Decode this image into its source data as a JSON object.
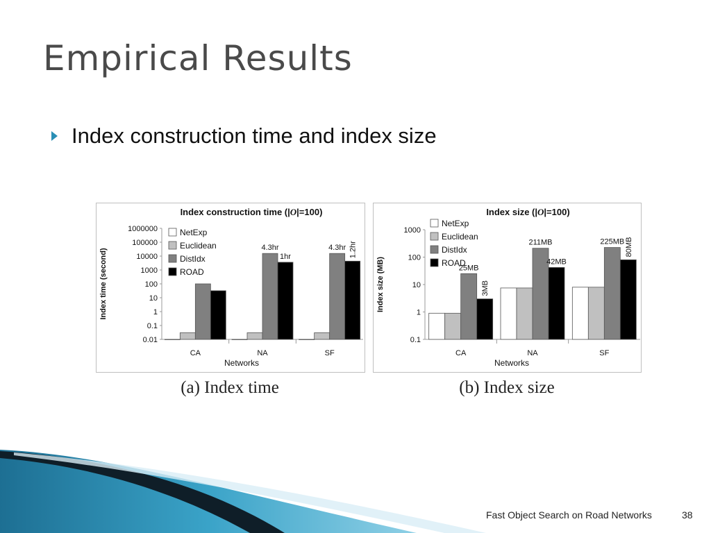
{
  "slide": {
    "title": "Empirical Results",
    "bullet": "Index construction time and index size",
    "footer": "Fast Object Search on Road Networks",
    "page_number": "38"
  },
  "colors": {
    "accent": "#2a8fb5",
    "NetExp": "#ffffff",
    "Euclidean": "#c0c0c0",
    "DistIdx": "#808080",
    "ROAD": "#000000"
  },
  "chart_data": [
    {
      "type": "bar",
      "title_pre": "Index construction time (|",
      "title_italic": "O",
      "title_post": "|=100)",
      "ylabel": "Index time (second)",
      "xlabel": "Networks",
      "caption": "(a) Index time",
      "yscale": "log",
      "ylim": [
        0.01,
        1000000
      ],
      "yticks": [
        "0.01",
        "0.1",
        "1",
        "10",
        "100",
        "1000",
        "10000",
        "100000",
        "1000000"
      ],
      "categories": [
        "CA",
        "NA",
        "SF"
      ],
      "legend_position": "top-left",
      "grid": false,
      "series": [
        {
          "name": "NetExp",
          "values": [
            0.01,
            0.01,
            0.01
          ]
        },
        {
          "name": "Euclidean",
          "values": [
            0.03,
            0.03,
            0.03
          ]
        },
        {
          "name": "DistIdx",
          "values": [
            100,
            15480,
            15480
          ]
        },
        {
          "name": "ROAD",
          "values": [
            32,
            3600,
            4320
          ]
        }
      ],
      "annotations": [
        {
          "category": 1,
          "series": 2,
          "text": "4.3hr",
          "rotated": false
        },
        {
          "category": 1,
          "series": 3,
          "text": "1hr",
          "rotated": false
        },
        {
          "category": 2,
          "series": 2,
          "text": "4.3hr",
          "rotated": false
        },
        {
          "category": 2,
          "series": 3,
          "text": "1.2hr",
          "rotated": true
        }
      ]
    },
    {
      "type": "bar",
      "title_pre": "Index size (|",
      "title_italic": "O",
      "title_post": "|=100)",
      "ylabel": "Index size (MB)",
      "xlabel": "Networks",
      "caption": "(b) Index size",
      "yscale": "log",
      "ylim": [
        0.1,
        1000
      ],
      "yticks": [
        "0.1",
        "1",
        "10",
        "100",
        "1000"
      ],
      "categories": [
        "CA",
        "NA",
        "SF"
      ],
      "legend_position": "top-left",
      "grid": false,
      "series": [
        {
          "name": "NetExp",
          "values": [
            0.9,
            7.5,
            8
          ]
        },
        {
          "name": "Euclidean",
          "values": [
            0.9,
            7.5,
            8
          ]
        },
        {
          "name": "DistIdx",
          "values": [
            25,
            211,
            225
          ]
        },
        {
          "name": "ROAD",
          "values": [
            3,
            42,
            80
          ]
        }
      ],
      "annotations": [
        {
          "category": 0,
          "series": 2,
          "text": "25MB",
          "rotated": false
        },
        {
          "category": 0,
          "series": 3,
          "text": "3MB",
          "rotated": true
        },
        {
          "category": 1,
          "series": 2,
          "text": "211MB",
          "rotated": false
        },
        {
          "category": 1,
          "series": 3,
          "text": "42MB",
          "rotated": false
        },
        {
          "category": 2,
          "series": 2,
          "text": "225MB",
          "rotated": false
        },
        {
          "category": 2,
          "series": 3,
          "text": "80MB",
          "rotated": true
        }
      ]
    }
  ]
}
